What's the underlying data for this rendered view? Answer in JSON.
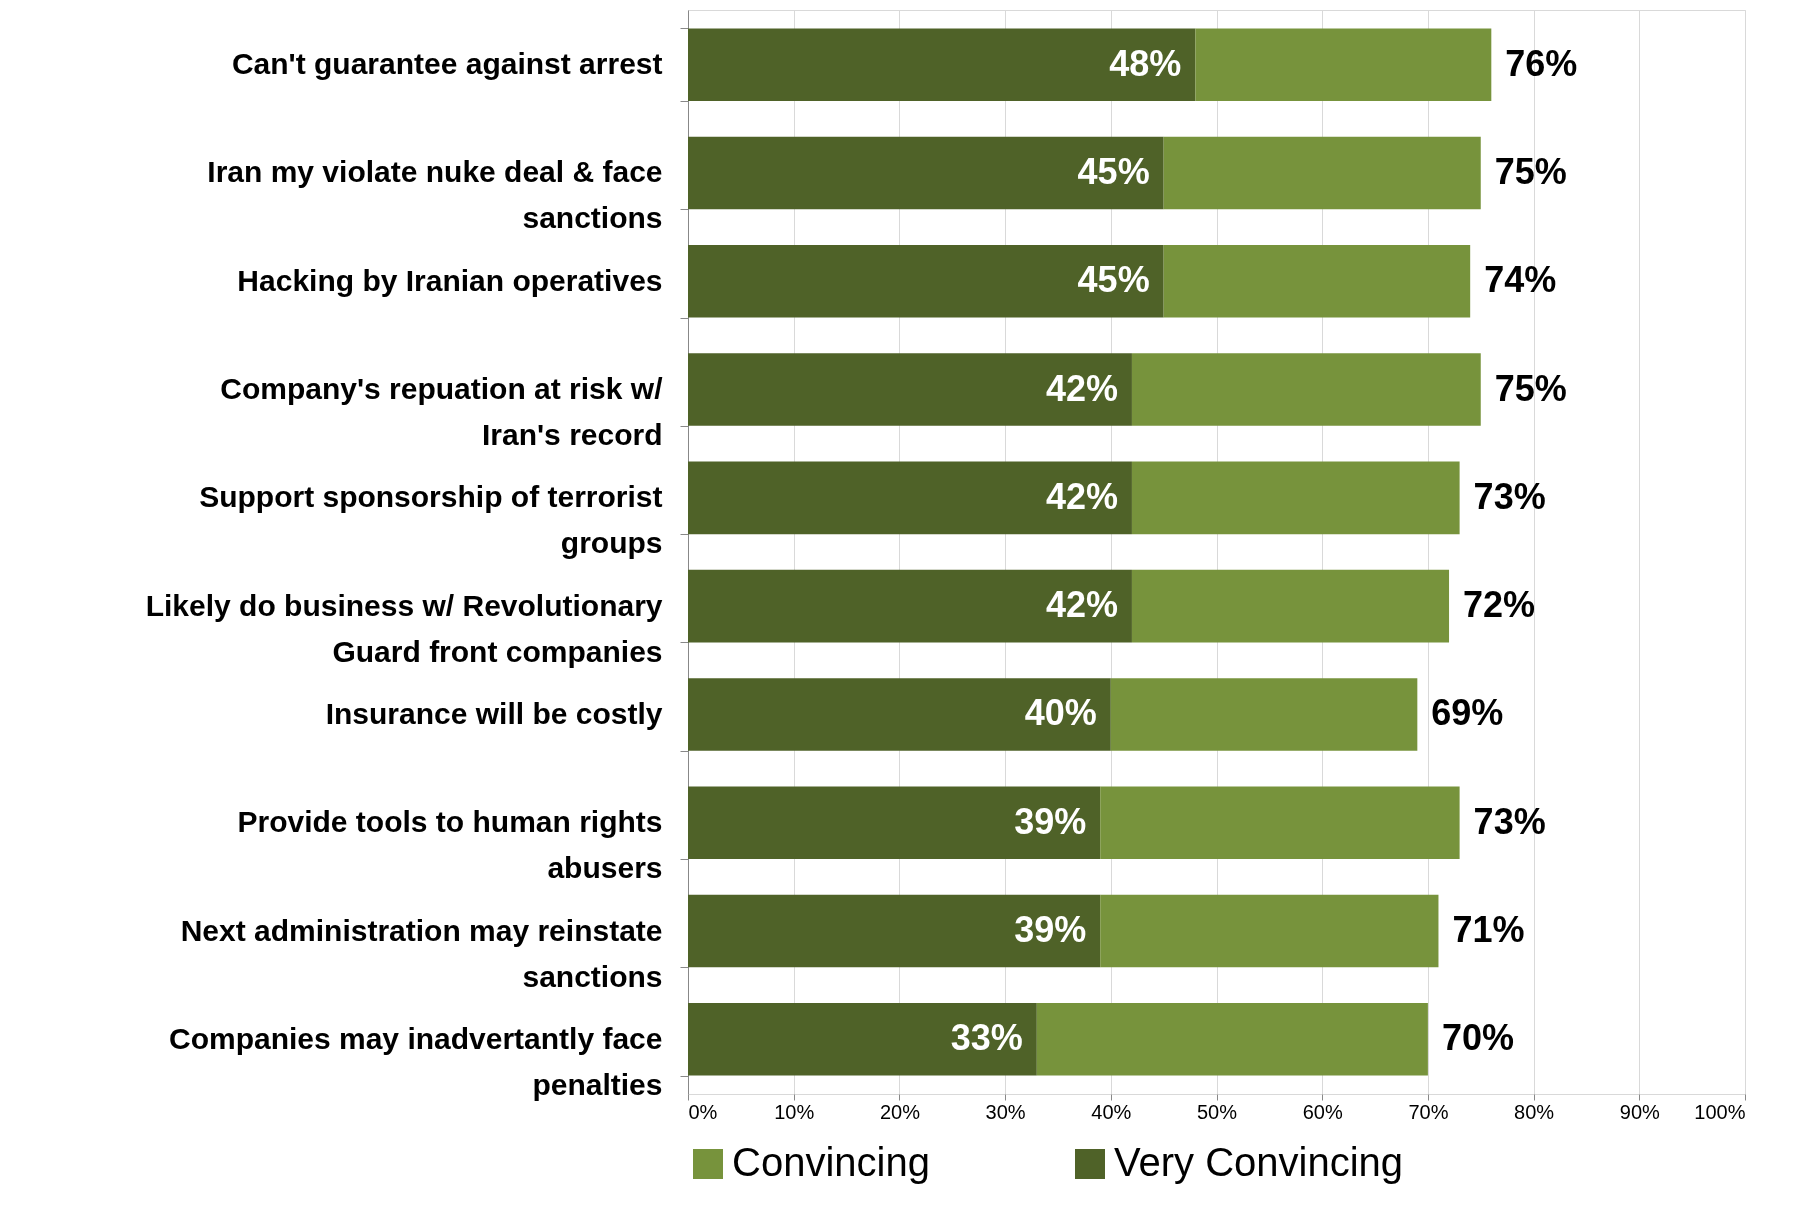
{
  "chart_data": {
    "type": "bar",
    "orientation": "horizontal",
    "stacked": true,
    "categories": [
      "Can't guarantee against arrest",
      "Iran my violate nuke deal & face sanctions",
      "Hacking by Iranian operatives",
      "Company's repuation at risk w/ Iran's record",
      "Support sponsorship of terrorist groups",
      "Likely do business w/ Revolutionary Guard front companies",
      "Insurance will be costly",
      "Provide tools to human rights abusers",
      "Next administration may reinstate sanctions",
      "Companies may inadvertantly face penalties"
    ],
    "series": [
      {
        "name": "Very Convincing",
        "color": "#4f6228",
        "values": [
          48,
          45,
          45,
          42,
          42,
          42,
          40,
          39,
          39,
          33
        ],
        "value_labels": [
          "48%",
          "45%",
          "45%",
          "42%",
          "42%",
          "42%",
          "40%",
          "39%",
          "39%",
          "33%"
        ]
      },
      {
        "name": "Convincing",
        "color": "#77933c",
        "values": [
          28,
          30,
          29,
          33,
          31,
          30,
          29,
          34,
          32,
          37
        ]
      }
    ],
    "totals": [
      "76%",
      "75%",
      "74%",
      "75%",
      "73%",
      "72%",
      "69%",
      "73%",
      "71%",
      "70%"
    ],
    "xlim": [
      0,
      100
    ],
    "xticks": [
      {
        "value": 0,
        "label": "0%"
      },
      {
        "value": 10,
        "label": "10%"
      },
      {
        "value": 20,
        "label": "20%"
      },
      {
        "value": 30,
        "label": "30%"
      },
      {
        "value": 40,
        "label": "40%"
      },
      {
        "value": 50,
        "label": "50%"
      },
      {
        "value": 60,
        "label": "60%"
      },
      {
        "value": 70,
        "label": "70%"
      },
      {
        "value": 80,
        "label": "80%"
      },
      {
        "value": 90,
        "label": "90%"
      },
      {
        "value": 100,
        "label": "100%"
      }
    ],
    "grid": "x",
    "legend": "bottom"
  }
}
